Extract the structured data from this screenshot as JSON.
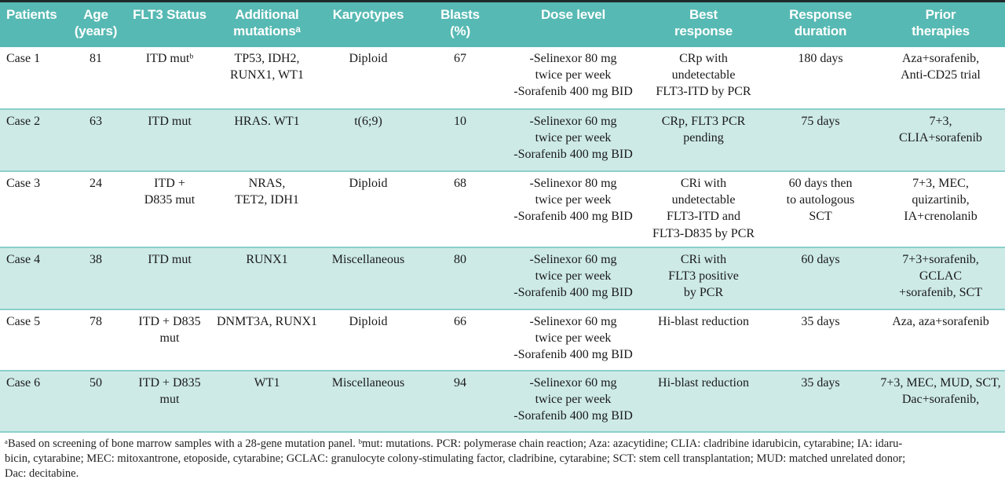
{
  "table": {
    "headers": [
      "Patients",
      "Age\n(years)",
      "FLT3 Status",
      "Additional\nmutationsᵃ",
      "Karyotypes",
      "Blasts\n(%)",
      "Dose level",
      "Best\nresponse",
      "Response\nduration",
      "Prior\ntherapies"
    ],
    "rows": [
      {
        "cells": [
          "Case 1",
          "81",
          "ITD mutᵇ",
          "TP53, IDH2,\nRUNX1, WT1",
          "Diploid",
          "67",
          "-Selinexor 80 mg\ntwice per week\n-Sorafenib 400 mg BID",
          "CRp with\nundetectable\nFLT3-ITD by PCR",
          "180 days",
          "Aza+sorafenib,\nAnti-CD25 trial"
        ]
      },
      {
        "cells": [
          "Case 2",
          "63",
          "ITD mut",
          "HRAS. WT1",
          "t(6;9)",
          "10",
          "-Selinexor 60 mg\ntwice per week\n-Sorafenib 400 mg BID",
          "CRp, FLT3 PCR\npending",
          "75 days",
          "7+3,\nCLIA+sorafenib"
        ]
      },
      {
        "cells": [
          "Case 3",
          "24",
          "ITD +\nD835 mut",
          "NRAS,\nTET2, IDH1",
          "Diploid",
          "68",
          "-Selinexor 80 mg\ntwice per week\n-Sorafenib 400 mg BID",
          "CRi with\nundetectable\nFLT3-ITD and\nFLT3-D835 by PCR",
          "60 days then\nto autologous\nSCT",
          "7+3, MEC,\nquizartinib,\nIA+crenolanib"
        ]
      },
      {
        "cells": [
          "Case 4",
          "38",
          "ITD mut",
          "RUNX1",
          "Miscellaneous",
          "80",
          "-Selinexor 60 mg\ntwice per week\n-Sorafenib 400 mg BID",
          "CRi with\nFLT3 positive\nby PCR",
          "60 days",
          "7+3+sorafenib,\nGCLAC\n+sorafenib, SCT"
        ]
      },
      {
        "cells": [
          "Case 5",
          "78",
          "ITD + D835 mut",
          "DNMT3A, RUNX1",
          "Diploid",
          "66",
          "-Selinexor 60 mg\ntwice per week\n-Sorafenib 400 mg BID",
          "Hi-blast reduction",
          "35 days",
          "Aza, aza+sorafenib"
        ]
      },
      {
        "cells": [
          "Case 6",
          "50",
          "ITD + D835 mut",
          "WT1",
          "Miscellaneous",
          "94",
          "-Selinexor 60 mg\ntwice per week\n-Sorafenib 400 mg BID",
          "Hi-blast reduction",
          "35 days",
          "7+3, MEC, MUD, SCT,\nDac+sorafenib,"
        ]
      }
    ]
  },
  "footnote": {
    "text": "ᵃBased on screening of bone marrow samples with a 28-gene mutation panel. ᵇmut: mutations. PCR: polymerase chain reaction; Aza: azacytidine; CLIA: cladribine idarubicin, cytarabine; IA: idaru-\nbicin, cytarabine;  MEC: mitoxantrone, etoposide, cytarabine; GCLAC: granulocyte colony-stimulating factor, cladribine, cytarabine; SCT: stem cell transplantation; MUD: matched unrelated donor;\nDac: decitabine."
  },
  "colors": {
    "header_bg": "#57b9b3",
    "header_text": "#ffffff",
    "row_bg": "#ffffff",
    "row_alt_bg": "#cdeae7",
    "row_divider": "#8ccfca",
    "top_rule": "#1f2b2b",
    "body_text": "#1a1a1a"
  }
}
